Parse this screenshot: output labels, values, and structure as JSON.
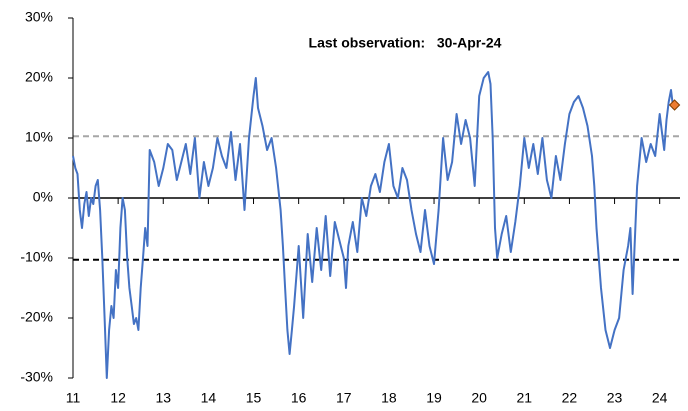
{
  "chart_data": {
    "type": "line",
    "annotation": "Last observation:   30-Apr-24",
    "x": [
      11.0,
      11.05,
      11.1,
      11.15,
      11.2,
      11.25,
      11.3,
      11.35,
      11.4,
      11.45,
      11.5,
      11.55,
      11.6,
      11.65,
      11.7,
      11.75,
      11.8,
      11.85,
      11.9,
      11.95,
      12.0,
      12.05,
      12.1,
      12.15,
      12.2,
      12.25,
      12.3,
      12.35,
      12.4,
      12.45,
      12.5,
      12.55,
      12.6,
      12.65,
      12.7,
      12.8,
      12.9,
      13.0,
      13.1,
      13.2,
      13.3,
      13.4,
      13.5,
      13.6,
      13.7,
      13.8,
      13.9,
      14.0,
      14.1,
      14.2,
      14.3,
      14.4,
      14.5,
      14.6,
      14.7,
      14.8,
      14.9,
      15.0,
      15.05,
      15.1,
      15.2,
      15.3,
      15.4,
      15.5,
      15.6,
      15.65,
      15.7,
      15.75,
      15.8,
      15.85,
      15.9,
      16.0,
      16.1,
      16.2,
      16.3,
      16.4,
      16.5,
      16.6,
      16.7,
      16.8,
      16.9,
      17.0,
      17.05,
      17.1,
      17.2,
      17.3,
      17.4,
      17.5,
      17.6,
      17.7,
      17.8,
      17.9,
      18.0,
      18.1,
      18.2,
      18.3,
      18.4,
      18.5,
      18.6,
      18.7,
      18.8,
      18.9,
      19.0,
      19.1,
      19.2,
      19.3,
      19.4,
      19.5,
      19.6,
      19.7,
      19.8,
      19.9,
      20.0,
      20.1,
      20.2,
      20.25,
      20.3,
      20.35,
      20.4,
      20.5,
      20.6,
      20.7,
      20.8,
      20.9,
      21.0,
      21.1,
      21.2,
      21.3,
      21.4,
      21.5,
      21.6,
      21.7,
      21.8,
      21.9,
      22.0,
      22.1,
      22.2,
      22.3,
      22.4,
      22.5,
      22.55,
      22.6,
      22.7,
      22.8,
      22.9,
      23.0,
      23.1,
      23.2,
      23.3,
      23.35,
      23.4,
      23.5,
      23.6,
      23.7,
      23.8,
      23.9,
      24.0,
      24.05,
      24.1,
      24.15,
      24.2,
      24.25,
      24.3,
      24.33
    ],
    "series": [
      {
        "color": "#4472c4",
        "values": [
          7,
          5,
          4,
          -2,
          -5,
          -1,
          1,
          -3,
          0,
          -1,
          2,
          3,
          -2,
          -10,
          -20,
          -30,
          -22,
          -18,
          -20,
          -12,
          -15,
          -5,
          0,
          -2,
          -10,
          -15,
          -18,
          -21,
          -20,
          -22,
          -15,
          -10,
          -5,
          -8,
          8,
          6,
          2,
          5,
          9,
          8,
          3,
          6,
          9,
          4,
          10,
          0,
          6,
          2,
          5,
          10,
          7,
          5,
          11,
          3,
          9,
          -2,
          10,
          17,
          20,
          15,
          12,
          8,
          10,
          5,
          -2,
          -8,
          -15,
          -22,
          -26,
          -22,
          -18,
          -8,
          -20,
          -6,
          -14,
          -5,
          -12,
          -3,
          -13,
          -4,
          -7,
          -10,
          -15,
          -8,
          -4,
          -9,
          0,
          -3,
          2,
          4,
          1,
          6,
          9,
          2,
          0,
          5,
          3,
          -2,
          -6,
          -9,
          -2,
          -8,
          -11,
          -2,
          10,
          3,
          6,
          14,
          9,
          13,
          10,
          2,
          17,
          20,
          21,
          19,
          10,
          -5,
          -10,
          -6,
          -3,
          -9,
          -4,
          2,
          10,
          5,
          9,
          4,
          10,
          3,
          0,
          7,
          3,
          9,
          14,
          16,
          17,
          15,
          12,
          7,
          2,
          -5,
          -15,
          -22,
          -25,
          -22,
          -20,
          -12,
          -8,
          -5,
          -16,
          2,
          10,
          6,
          9,
          7,
          14,
          11,
          8,
          13,
          16,
          18,
          15,
          15.5
        ]
      }
    ],
    "last_marker_color": "#ed7d31",
    "reference_lines": [
      {
        "value": 10.3,
        "color": "#a6a6a6"
      },
      {
        "value": -10.3,
        "color": "#000000"
      }
    ],
    "xlim": [
      11,
      24.45
    ],
    "xticks": [
      11,
      12,
      13,
      14,
      15,
      16,
      17,
      18,
      19,
      20,
      21,
      22,
      23,
      24
    ],
    "ylim": [
      -30,
      30
    ],
    "yticks": [
      {
        "value": -30,
        "label": "-30%"
      },
      {
        "value": -20,
        "label": "-20%"
      },
      {
        "value": -10,
        "label": "-10%"
      },
      {
        "value": 0,
        "label": "0%"
      },
      {
        "value": 10,
        "label": "10%"
      },
      {
        "value": 20,
        "label": "20%"
      },
      {
        "value": 30,
        "label": "30%"
      }
    ]
  }
}
